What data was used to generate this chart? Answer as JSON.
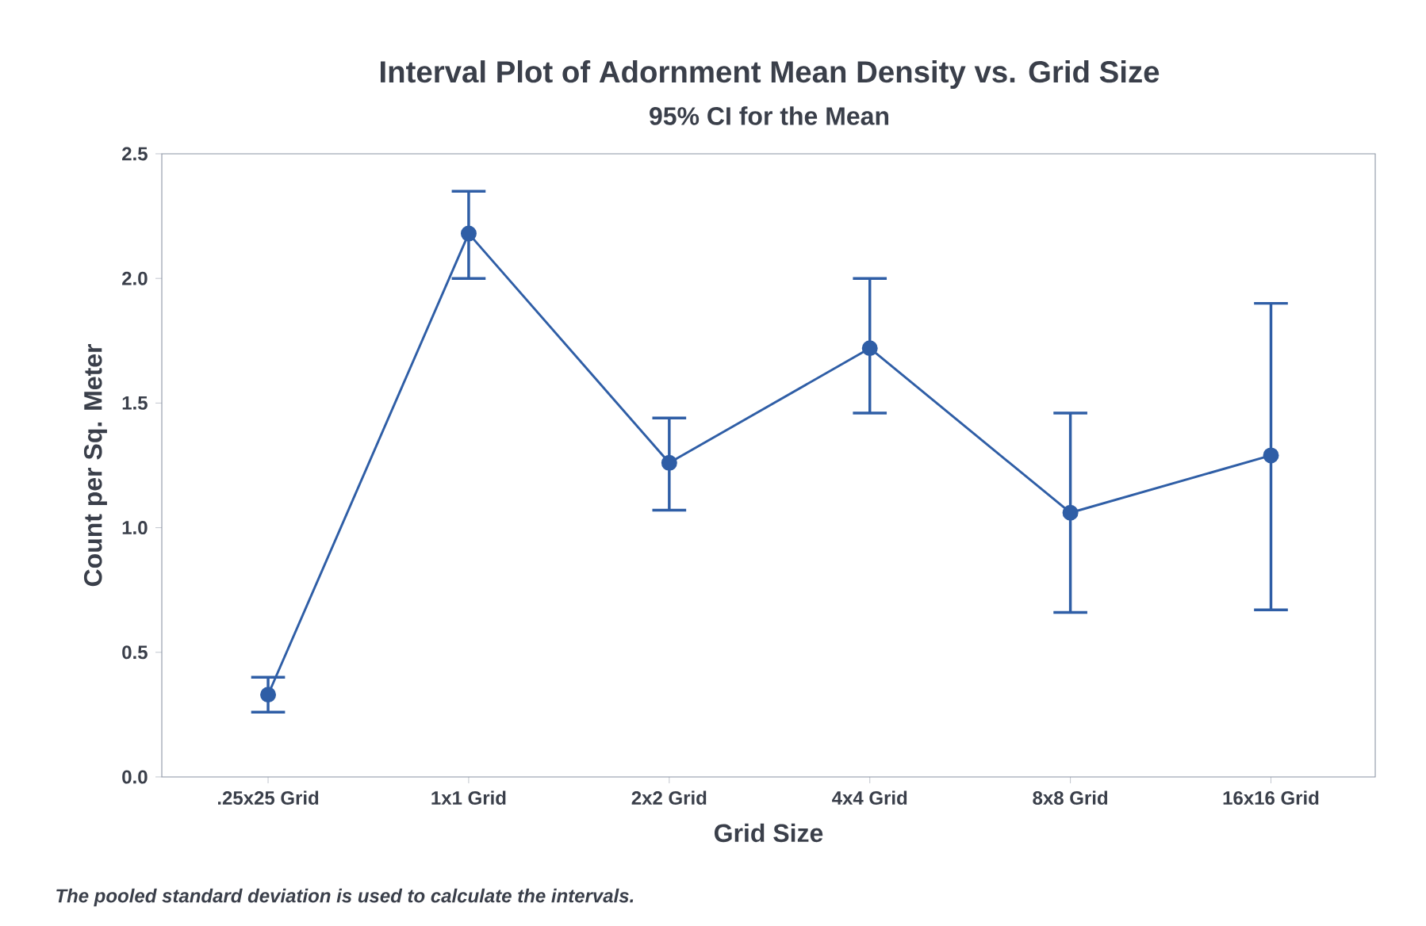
{
  "chart_data": {
    "type": "line",
    "title": "Interval Plot of Adornment Mean Density vs. Grid Size",
    "subtitle": "95% CI for the Mean",
    "xlabel": "Grid Size",
    "ylabel": "Count per Sq. Meter",
    "annotations": [
      "The pooled standard deviation is used to calculate the intervals."
    ],
    "categories": [
      ".25x25 Grid",
      "1x1 Grid",
      "2x2 Grid",
      "4x4 Grid",
      "8x8 Grid",
      "16x16 Grid"
    ],
    "series": [
      {
        "color": "#2f5ea6",
        "values": [
          0.33,
          2.18,
          1.26,
          1.72,
          1.06,
          1.29
        ],
        "errors": [
          [
            0.26,
            0.4
          ],
          [
            2.0,
            2.35
          ],
          [
            1.07,
            1.44
          ],
          [
            1.46,
            2.0
          ],
          [
            0.66,
            1.46
          ],
          [
            0.67,
            1.9
          ]
        ]
      }
    ],
    "ylim": [
      0,
      2.5
    ],
    "yticks": [
      {
        "value": 0,
        "label": "0.0"
      },
      0.5,
      {
        "value": 1,
        "label": "1.0"
      },
      1.5,
      {
        "value": 2,
        "label": "2.0"
      },
      2.5
    ],
    "grid": false,
    "marker": "circle",
    "line_style": "solid"
  }
}
